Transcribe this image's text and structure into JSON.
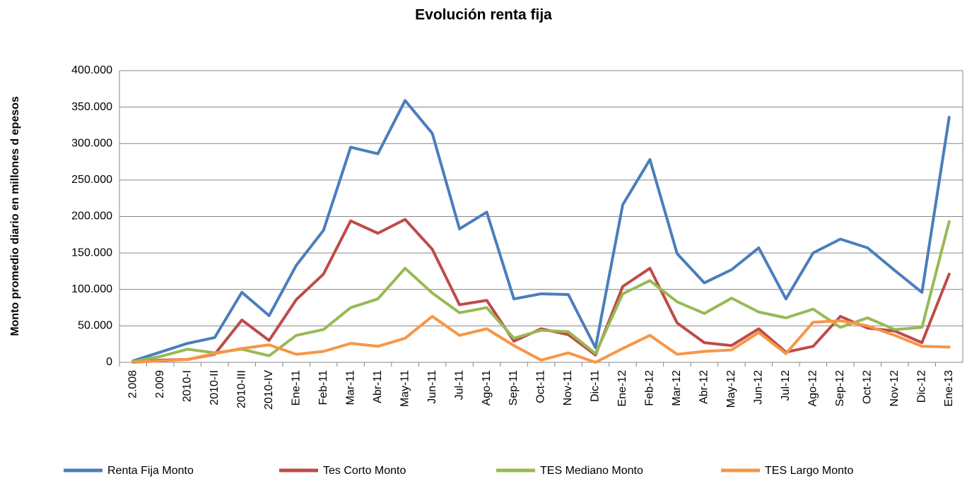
{
  "chart_data": {
    "type": "line",
    "title": "Evolución renta fija",
    "y_label": "Monto promedio diario en millones d epesos",
    "categories": [
      "2.008",
      "2.009",
      "2010-I",
      "2010-II",
      "2010-III",
      "2010-IV",
      "Ene-11",
      "Feb-11",
      "Mar-11",
      "Abr-11",
      "May-11",
      "Jun-11",
      "Jul-11",
      "Ago-11",
      "Sep-11",
      "Oct-11",
      "Nov-11",
      "Dic-11",
      "Ene-12",
      "Feb-12",
      "Mar-12",
      "Abr-12",
      "May-12",
      "Jun-12",
      "Jul-12",
      "Ago-12",
      "Sep-12",
      "Oct-12",
      "Nov-12",
      "Dic-12",
      "Ene-13"
    ],
    "series": [
      {
        "name": "Renta Fija Monto",
        "color": "#4a7ebb",
        "values": [
          2000,
          14000,
          26000,
          34000,
          96000,
          64000,
          133000,
          181000,
          295000,
          286000,
          359000,
          314000,
          183000,
          206000,
          87000,
          94000,
          93000,
          20000,
          216000,
          278000,
          149000,
          109000,
          127000,
          157000,
          87000,
          150000,
          169000,
          157000,
          126000,
          96000,
          336000
        ]
      },
      {
        "name": "Tes Corto Monto",
        "color": "#be4b48",
        "values": [
          0,
          3000,
          4000,
          11000,
          58000,
          30000,
          86000,
          121000,
          194000,
          177000,
          196000,
          155000,
          79000,
          85000,
          29000,
          46000,
          38000,
          10000,
          104000,
          129000,
          54000,
          27000,
          23000,
          46000,
          14000,
          22000,
          63000,
          47000,
          43000,
          27000,
          121000
        ]
      },
      {
        "name": "TES Mediano Monto",
        "color": "#98b954",
        "values": [
          1000,
          8000,
          18000,
          13000,
          18000,
          9000,
          37000,
          45000,
          75000,
          87000,
          129000,
          95000,
          68000,
          75000,
          33000,
          44000,
          42000,
          12000,
          94000,
          112000,
          83000,
          67000,
          88000,
          69000,
          61000,
          73000,
          48000,
          61000,
          45000,
          48000,
          193000
        ]
      },
      {
        "name": "TES Largo Monto",
        "color": "#f79646",
        "values": [
          0,
          2000,
          4000,
          12000,
          19000,
          24000,
          11000,
          15000,
          26000,
          22000,
          33000,
          63000,
          37000,
          46000,
          23000,
          3000,
          13000,
          0,
          19000,
          37000,
          11000,
          15000,
          17000,
          41000,
          12000,
          55000,
          57000,
          50000,
          37000,
          22000,
          21000
        ]
      }
    ],
    "ylim": [
      0,
      400000
    ],
    "yticks": [
      0,
      {
        "value": 50000,
        "label": "50.000"
      },
      {
        "value": 100000,
        "label": "100.000"
      },
      {
        "value": 150000,
        "label": "150.000"
      },
      {
        "value": 200000,
        "label": "200.000"
      },
      {
        "value": 250000,
        "label": "250.000"
      },
      {
        "value": 300000,
        "label": "300.000"
      },
      {
        "value": 350000,
        "label": "350.000"
      },
      {
        "value": 400000,
        "label": "400.000"
      }
    ],
    "grid": true,
    "legend": "bottom"
  }
}
